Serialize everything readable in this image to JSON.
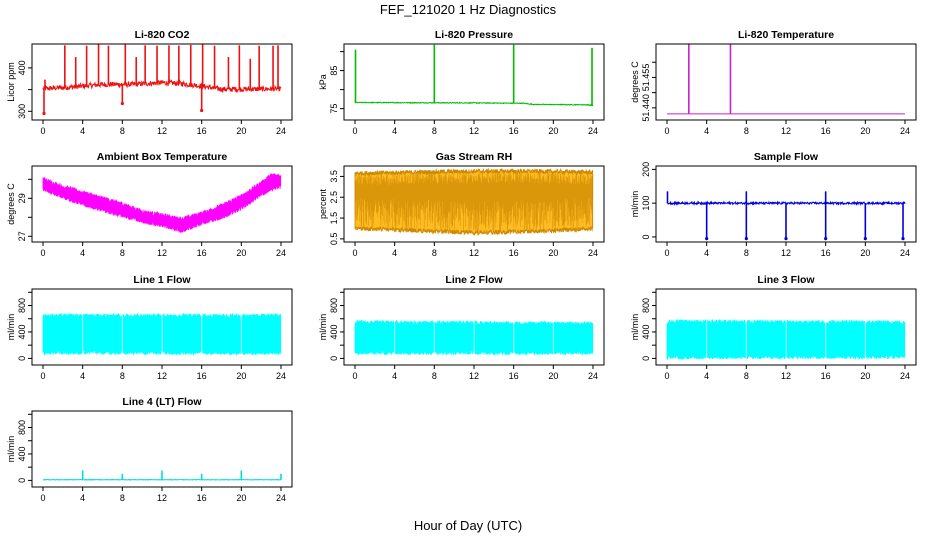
{
  "figure": {
    "title": "FEF_121020  1 Hz Diagnostics",
    "xlabel": "Hour of Day (UTC)"
  },
  "chart_data": [
    {
      "type": "line",
      "title": "Li-820 CO2",
      "ylabel": "Licor ppm",
      "color": "#ee1111",
      "xlim": [
        0,
        24
      ],
      "ylim": [
        280,
        455
      ],
      "xticks": [
        0,
        4,
        8,
        12,
        16,
        20,
        24
      ],
      "yticks": [
        300,
        350,
        400
      ],
      "yticklabels": [
        "300",
        "",
        "400"
      ],
      "base": [
        [
          0,
          352
        ],
        [
          3,
          356
        ],
        [
          6,
          362
        ],
        [
          9,
          362
        ],
        [
          12,
          366
        ],
        [
          14,
          364
        ],
        [
          16,
          358
        ],
        [
          18,
          351
        ],
        [
          21,
          351
        ],
        [
          24,
          352
        ]
      ],
      "noise": 6,
      "spikes": [
        [
          0.2,
          373
        ],
        [
          2.2,
          452
        ],
        [
          3.3,
          425
        ],
        [
          4.4,
          451
        ],
        [
          5.6,
          455
        ],
        [
          6.6,
          451
        ],
        [
          8.3,
          455
        ],
        [
          9.4,
          425
        ],
        [
          10.3,
          452
        ],
        [
          11.5,
          451
        ],
        [
          12.7,
          452
        ],
        [
          13.7,
          451
        ],
        [
          14.9,
          453
        ],
        [
          16.1,
          455
        ],
        [
          17.3,
          451
        ],
        [
          18.7,
          425
        ],
        [
          19.8,
          452
        ],
        [
          20.9,
          421
        ],
        [
          21.8,
          451
        ],
        [
          23.2,
          451
        ],
        [
          23.7,
          452
        ]
      ],
      "dips": [
        [
          0.1,
          295
        ],
        [
          8.0,
          318
        ],
        [
          16.0,
          302
        ]
      ]
    },
    {
      "type": "line",
      "title": "Li-820 Pressure",
      "ylabel": "kPa",
      "color": "#00bb00",
      "xlim": [
        0,
        24
      ],
      "ylim": [
        72,
        92
      ],
      "xticks": [
        0,
        4,
        8,
        12,
        16,
        20,
        24
      ],
      "yticks": [
        75,
        80,
        85,
        90
      ],
      "yticklabels": [
        "75",
        "",
        "85",
        ""
      ],
      "base": [
        [
          0,
          76.6
        ],
        [
          12,
          76.5
        ],
        [
          17,
          76.4
        ],
        [
          18,
          76.1
        ],
        [
          23.5,
          76.0
        ],
        [
          24,
          75.8
        ]
      ],
      "noise": 0.1,
      "spikes": [
        [
          0.05,
          90.5
        ],
        [
          8.0,
          91.8
        ],
        [
          16.0,
          91.8
        ],
        [
          23.9,
          91.0
        ]
      ],
      "dips": []
    },
    {
      "type": "line",
      "title": "Li-820 Temperature",
      "ylabel": "degrees C",
      "color": "#cc22cc",
      "xlim": [
        0,
        24
      ],
      "ylim": [
        51.436,
        51.461
      ],
      "xticks": [
        0,
        4,
        8,
        12,
        16,
        20,
        24
      ],
      "yticks": [
        51.44,
        51.445,
        51.45,
        51.455
      ],
      "yticklabels": [
        "51.440",
        "",
        "51.455",
        ""
      ],
      "base": [
        [
          0,
          51.438
        ],
        [
          24,
          51.438
        ]
      ],
      "noise": 0,
      "spikes": [
        [
          2.2,
          51.461
        ],
        [
          6.4,
          51.461
        ]
      ],
      "dips": []
    },
    {
      "type": "band",
      "title": "Ambient Box Temperature",
      "ylabel": "degrees C",
      "color": "#ff00ff",
      "xlim": [
        0,
        24
      ],
      "ylim": [
        26.7,
        30.7
      ],
      "xticks": [
        0,
        4,
        8,
        12,
        16,
        20,
        24
      ],
      "yticks": [
        27,
        28,
        29,
        30
      ],
      "yticklabels": [
        "27",
        "",
        "29",
        ""
      ],
      "upper": [
        [
          0,
          30.0
        ],
        [
          2,
          29.6
        ],
        [
          4,
          29.3
        ],
        [
          6,
          29.0
        ],
        [
          8,
          28.7
        ],
        [
          10,
          28.3
        ],
        [
          12,
          28.1
        ],
        [
          14,
          27.9
        ],
        [
          16,
          28.2
        ],
        [
          18,
          28.6
        ],
        [
          20,
          29.1
        ],
        [
          22,
          29.8
        ],
        [
          23,
          30.2
        ],
        [
          24,
          30.2
        ]
      ],
      "lower": [
        [
          0,
          29.5
        ],
        [
          2,
          29.1
        ],
        [
          4,
          28.7
        ],
        [
          6,
          28.4
        ],
        [
          8,
          28.1
        ],
        [
          10,
          27.8
        ],
        [
          12,
          27.6
        ],
        [
          14,
          27.3
        ],
        [
          16,
          27.7
        ],
        [
          18,
          28.0
        ],
        [
          20,
          28.5
        ],
        [
          22,
          29.2
        ],
        [
          23,
          29.5
        ],
        [
          24,
          29.6
        ]
      ]
    },
    {
      "type": "band",
      "title": "Gas Stream RH",
      "ylabel": "percent",
      "color": "#cc8800",
      "fill": "#ffbb22",
      "xlim": [
        0,
        24
      ],
      "ylim": [
        0.35,
        4.0
      ],
      "xticks": [
        0,
        4,
        8,
        12,
        16,
        20,
        24
      ],
      "yticks": [
        0.5,
        1.5,
        2.5,
        3.5
      ],
      "yticklabels": [
        "0.5",
        "1.5",
        "2.5",
        "3.5"
      ],
      "upper": [
        [
          0,
          3.65
        ],
        [
          6,
          3.7
        ],
        [
          12,
          3.75
        ],
        [
          18,
          3.75
        ],
        [
          24,
          3.7
        ]
      ],
      "lower": [
        [
          0,
          1.0
        ],
        [
          6,
          0.9
        ],
        [
          12,
          0.8
        ],
        [
          18,
          0.85
        ],
        [
          24,
          1.0
        ]
      ]
    },
    {
      "type": "line",
      "title": "Sample Flow",
      "ylabel": "ml/min",
      "color": "#0000dd",
      "xlim": [
        0,
        24
      ],
      "ylim": [
        -15,
        210
      ],
      "xticks": [
        0,
        4,
        8,
        12,
        16,
        20,
        24
      ],
      "yticks": [
        0,
        100,
        200
      ],
      "yticklabels": [
        "0",
        "100",
        "200"
      ],
      "base": [
        [
          0,
          100
        ],
        [
          24,
          100
        ]
      ],
      "noise": 3,
      "spikes": [
        [
          0.05,
          135
        ],
        [
          8.0,
          135
        ],
        [
          16.0,
          135
        ]
      ],
      "dips": [
        [
          4.0,
          -5
        ],
        [
          8.0,
          -5
        ],
        [
          12.0,
          -5
        ],
        [
          16.0,
          -5
        ],
        [
          20.0,
          -5
        ],
        [
          23.8,
          -5
        ]
      ]
    },
    {
      "type": "band",
      "title": "Line 1 Flow",
      "ylabel": "ml/min",
      "color": "#00ffff",
      "xlim": [
        0,
        24
      ],
      "ylim": [
        -100,
        1050
      ],
      "xticks": [
        0,
        4,
        8,
        12,
        16,
        20,
        24
      ],
      "yticks": [
        0,
        200,
        400,
        600,
        800,
        1000
      ],
      "yticklabels": [
        "0",
        "",
        "400",
        "",
        "800",
        ""
      ],
      "upper": [
        [
          0,
          640
        ],
        [
          24,
          640
        ]
      ],
      "lower": [
        [
          0,
          90
        ],
        [
          24,
          90
        ]
      ],
      "gaps": [
        4,
        8,
        12,
        16,
        20
      ]
    },
    {
      "type": "band",
      "title": "Line 2 Flow",
      "ylabel": "ml/min",
      "color": "#00ffff",
      "xlim": [
        0,
        24
      ],
      "ylim": [
        -100,
        1050
      ],
      "xticks": [
        0,
        4,
        8,
        12,
        16,
        20,
        24
      ],
      "yticks": [
        0,
        200,
        400,
        600,
        800,
        1000
      ],
      "yticklabels": [
        "0",
        "",
        "400",
        "",
        "800",
        ""
      ],
      "upper": [
        [
          0,
          540
        ],
        [
          24,
          520
        ]
      ],
      "lower": [
        [
          0,
          90
        ],
        [
          24,
          90
        ]
      ],
      "gaps": [
        4,
        8,
        12,
        16,
        20
      ]
    },
    {
      "type": "band",
      "title": "Line 3 Flow",
      "ylabel": "ml/min",
      "color": "#00ffff",
      "xlim": [
        0,
        24
      ],
      "ylim": [
        -100,
        1050
      ],
      "xticks": [
        0,
        4,
        8,
        12,
        16,
        20,
        24
      ],
      "yticks": [
        0,
        200,
        400,
        600,
        800,
        1000
      ],
      "yticklabels": [
        "0",
        "",
        "400",
        "",
        "800",
        ""
      ],
      "upper": [
        [
          0,
          550
        ],
        [
          24,
          540
        ]
      ],
      "lower": [
        [
          0,
          20
        ],
        [
          24,
          30
        ]
      ],
      "gaps": [
        4,
        8,
        12,
        16,
        20
      ]
    },
    {
      "type": "line",
      "title": "Line 4 (LT) Flow",
      "ylabel": "ml/min",
      "color": "#00dddd",
      "xlim": [
        0,
        24
      ],
      "ylim": [
        -100,
        1050
      ],
      "xticks": [
        0,
        4,
        8,
        12,
        16,
        20,
        24
      ],
      "yticks": [
        0,
        200,
        400,
        600,
        800,
        1000
      ],
      "yticklabels": [
        "0",
        "",
        "400",
        "",
        "800",
        ""
      ],
      "base": [
        [
          0,
          10
        ],
        [
          24,
          10
        ]
      ],
      "noise": 4,
      "spikes": [
        [
          4.0,
          150
        ],
        [
          8.0,
          100
        ],
        [
          12.0,
          150
        ],
        [
          16.0,
          100
        ],
        [
          20.0,
          150
        ],
        [
          24.0,
          100
        ]
      ],
      "dips": []
    }
  ]
}
